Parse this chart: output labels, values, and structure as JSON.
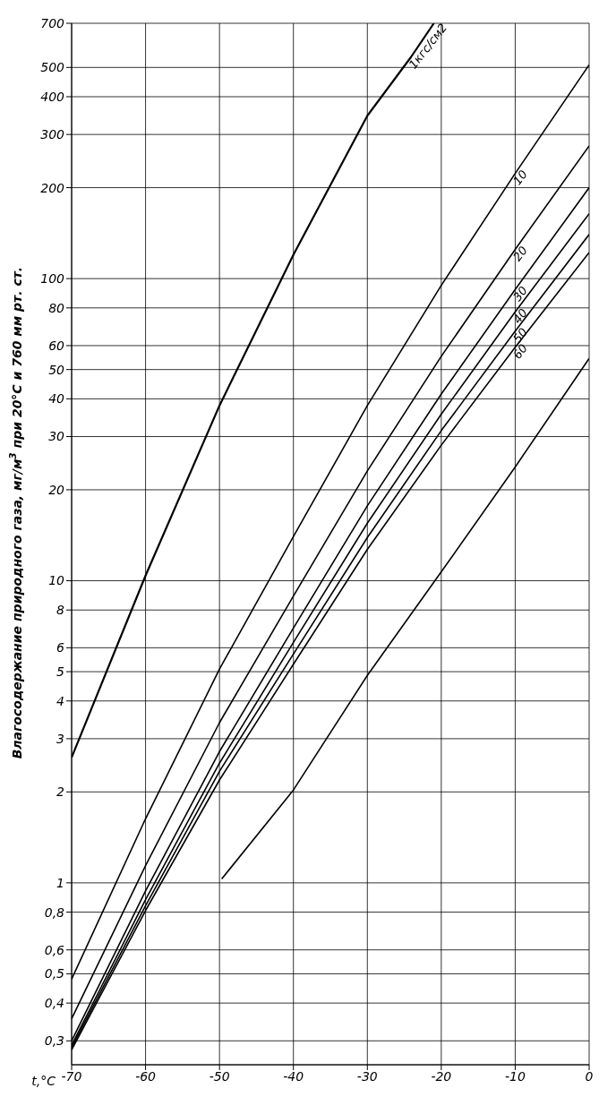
{
  "chart_data": {
    "type": "line",
    "xlabel": "t,°C",
    "ylabel": "Влагосодержание природного газа, мг/м$^{3}$ при 20°С и 760 мм рт. ст.",
    "x": [
      -70,
      -60,
      -50,
      -40,
      -30,
      -20,
      -10,
      0
    ],
    "series": [
      {
        "name": "1кгс/см2",
        "color": "#000000",
        "x": [
          -70,
          -60,
          -50,
          -40,
          -30,
          -24.1,
          -21
        ],
        "values": [
          2.6,
          10.4,
          38,
          120,
          346,
          541,
          700
        ]
      },
      {
        "name": "10",
        "color": "#000000",
        "values": [
          0.48,
          1.63,
          5.1,
          14,
          38,
          95,
          223,
          510
        ]
      },
      {
        "name": "20",
        "color": "#000000",
        "values": [
          0.355,
          1.14,
          3.39,
          8.9,
          23.1,
          55.3,
          125,
          275
        ]
      },
      {
        "name": "30",
        "color": "#000000",
        "values": [
          0.3,
          0.94,
          2.72,
          6.97,
          17.7,
          41.5,
          92,
          200
        ]
      },
      {
        "name": "40",
        "color": "#000000",
        "values": [
          0.29,
          0.88,
          2.49,
          6.25,
          15.5,
          35.6,
          77.6,
          164
        ]
      },
      {
        "name": "50",
        "color": "#000000",
        "values": [
          0.285,
          0.84,
          2.34,
          5.72,
          13.9,
          31.4,
          67,
          140
        ]
      },
      {
        "name": "60",
        "color": "#000000",
        "values": [
          0.28,
          0.81,
          2.19,
          5.29,
          12.7,
          28.1,
          59.3,
          122
        ]
      },
      {
        "color": "#000000",
        "x": [
          -49.7,
          -40,
          -30,
          -20,
          -10,
          0
        ],
        "values": [
          1.03,
          2.03,
          4.86,
          10.7,
          23.8,
          54.4
        ]
      }
    ],
    "xlim": [
      -70,
      0
    ],
    "xticks": [
      -70,
      -60,
      -50,
      -40,
      -30,
      -20,
      -10,
      0
    ],
    "ylim": [
      0.25,
      700
    ],
    "yticks": [
      {
        "value": 0.3,
        "label": "0,3"
      },
      {
        "value": 0.4,
        "label": "0,4"
      },
      {
        "value": 0.5,
        "label": "0,5"
      },
      {
        "value": 0.6,
        "label": "0,6"
      },
      {
        "value": 0.8,
        "label": "0,8"
      },
      1,
      2,
      3,
      4,
      5,
      6,
      8,
      10,
      20,
      30,
      40,
      50,
      60,
      80,
      100,
      200,
      300,
      400,
      500,
      700
    ],
    "log": "y",
    "grid": true,
    "marker": "none",
    "line_style": "solid"
  }
}
